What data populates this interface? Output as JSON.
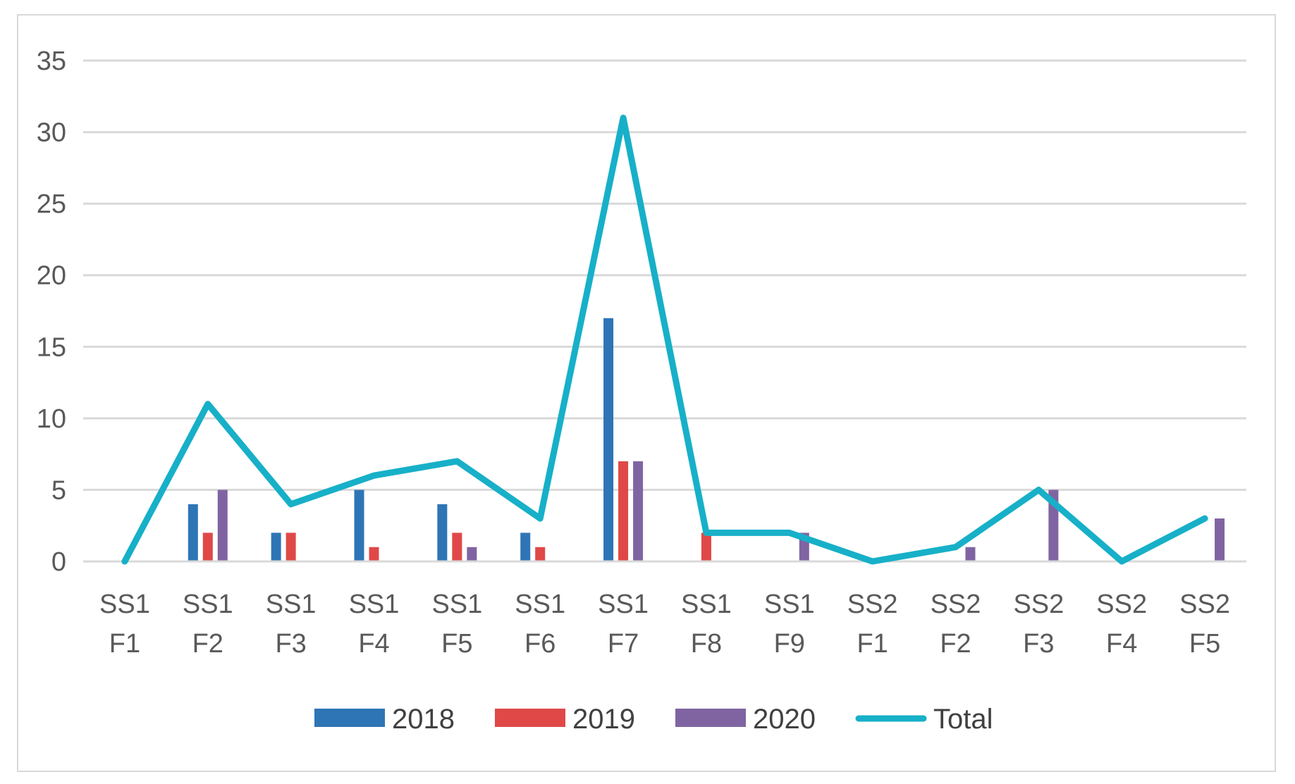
{
  "chart_data": {
    "type": "bar",
    "title": "",
    "xlabel": "",
    "ylabel": "",
    "ylim": [
      0,
      35
    ],
    "yticks": [
      0,
      5,
      10,
      15,
      20,
      25,
      30,
      35
    ],
    "grid": true,
    "legend_position": "bottom",
    "categories": [
      [
        "SS1",
        "F1"
      ],
      [
        "SS1",
        "F2"
      ],
      [
        "SS1",
        "F3"
      ],
      [
        "SS1",
        "F4"
      ],
      [
        "SS1",
        "F5"
      ],
      [
        "SS1",
        "F6"
      ],
      [
        "SS1",
        "F7"
      ],
      [
        "SS1",
        "F8"
      ],
      [
        "SS1",
        "F9"
      ],
      [
        "SS2",
        "F1"
      ],
      [
        "SS2",
        "F2"
      ],
      [
        "SS2",
        "F3"
      ],
      [
        "SS2",
        "F4"
      ],
      [
        "SS2",
        "F5"
      ]
    ],
    "series": [
      {
        "name": "2018",
        "kind": "bar",
        "color": "#2e75b6",
        "values": [
          0,
          4,
          2,
          5,
          4,
          2,
          17,
          0,
          0,
          0,
          0,
          0,
          0,
          0
        ]
      },
      {
        "name": "2019",
        "kind": "bar",
        "color": "#e04848",
        "values": [
          0,
          2,
          2,
          1,
          2,
          1,
          7,
          2,
          0,
          0,
          0,
          0,
          0,
          0
        ]
      },
      {
        "name": "2020",
        "kind": "bar",
        "color": "#8064a2",
        "values": [
          0,
          5,
          0,
          0,
          1,
          0,
          7,
          0,
          2,
          0,
          1,
          5,
          0,
          3
        ]
      },
      {
        "name": "Total",
        "kind": "line",
        "color": "#17b0c8",
        "values": [
          0,
          11,
          4,
          6,
          7,
          3,
          31,
          2,
          2,
          0,
          1,
          5,
          0,
          3
        ]
      }
    ]
  }
}
